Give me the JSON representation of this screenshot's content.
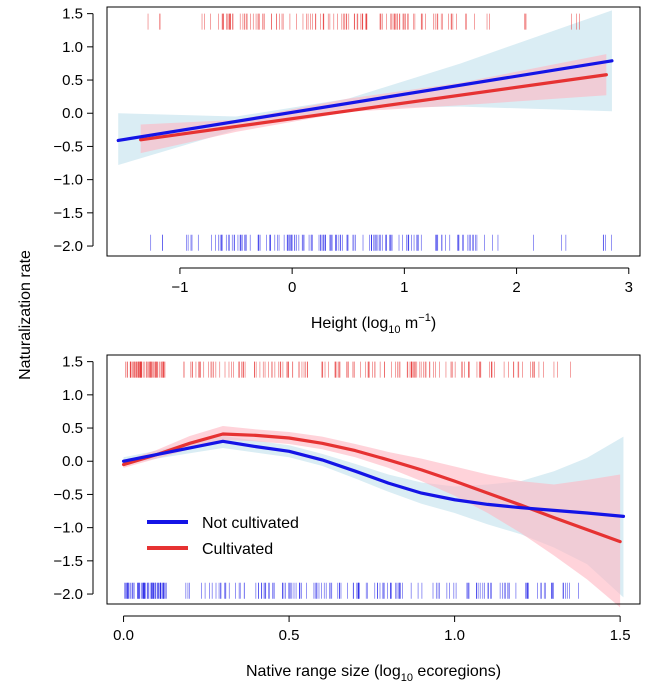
{
  "shared_ylabel": "Naturalization rate",
  "colors": {
    "not_cultivated": "#1414e6",
    "cultivated": "#e63232",
    "not_cultivated_band": "#add8e6",
    "cultivated_band": "#ffb6c1"
  },
  "legend": {
    "placement": "bottom-left of lower panel",
    "entries": [
      {
        "label": "Not cultivated",
        "color": "#1414e6"
      },
      {
        "label": "Cultivated",
        "color": "#e63232"
      }
    ]
  },
  "chart_data": [
    {
      "type": "line",
      "xlabel_prefix": "Height (log",
      "xlabel_sub": "10",
      "xlabel_mid": " m",
      "xlabel_sup": "−1",
      "xlabel_suffix": ")",
      "ylabel": "Naturalization rate",
      "xlim": [
        -1.65,
        3.1
      ],
      "ylim": [
        -2.15,
        1.6
      ],
      "xticks": [
        -1,
        0,
        1,
        2,
        3
      ],
      "xtick_labels": [
        "−1",
        "0",
        "1",
        "2",
        "3"
      ],
      "yticks": [
        1.5,
        1.0,
        0.5,
        0.0,
        -0.5,
        -1.0,
        -1.5,
        -2.0
      ],
      "ytick_labels": [
        "1.5",
        "1.0",
        "0.5",
        "0.0",
        "−0.5",
        "−1.0",
        "−1.5",
        "−2.0"
      ],
      "grid": false,
      "series": [
        {
          "name": "Not cultivated",
          "x": [
            -1.55,
            2.85
          ],
          "y": [
            -0.41,
            0.79
          ],
          "band_x": [
            -1.55,
            -0.5,
            0.5,
            1.5,
            2.85
          ],
          "band_lower": [
            -0.78,
            -0.25,
            0.08,
            0.1,
            0.03
          ],
          "band_upper": [
            0.0,
            -0.05,
            0.22,
            0.75,
            1.55
          ]
        },
        {
          "name": "Cultivated",
          "x": [
            -1.35,
            2.8
          ],
          "y": [
            -0.4,
            0.58
          ],
          "band_x": [
            -1.35,
            -0.5,
            0.5,
            1.5,
            2.8
          ],
          "band_lower": [
            -0.6,
            -0.28,
            0.02,
            0.12,
            0.27
          ],
          "band_upper": [
            -0.17,
            -0.1,
            0.22,
            0.46,
            0.89
          ]
        }
      ],
      "rug": {
        "cultivated_y": 1.38,
        "not_cultivated_y": -1.95,
        "cultivated_ranges": [
          [
            -1.3,
            -1.15,
            3
          ],
          [
            -1.0,
            -0.65,
            4
          ],
          [
            -0.65,
            1.1,
            95
          ],
          [
            1.1,
            1.7,
            18
          ],
          [
            1.7,
            2.7,
            8
          ]
        ],
        "not_cultivated_ranges": [
          [
            -1.4,
            -1.1,
            3
          ],
          [
            -1.0,
            -0.65,
            8
          ],
          [
            -0.65,
            1.25,
            110
          ],
          [
            1.25,
            1.8,
            22
          ],
          [
            1.8,
            2.85,
            8
          ]
        ]
      }
    },
    {
      "type": "line",
      "xlabel_prefix": "Native range size (log",
      "xlabel_sub": "10",
      "xlabel_mid": " ecoregions",
      "xlabel_sup": "",
      "xlabel_suffix": ")",
      "ylabel": "Naturalization rate",
      "xlim": [
        -0.05,
        1.56
      ],
      "ylim": [
        -2.15,
        1.6
      ],
      "xticks": [
        0.0,
        0.5,
        1.0,
        1.5
      ],
      "xtick_labels": [
        "0.0",
        "0.5",
        "1.0",
        "1.5"
      ],
      "yticks": [
        1.5,
        1.0,
        0.5,
        0.0,
        -0.5,
        -1.0,
        -1.5,
        -2.0
      ],
      "ytick_labels": [
        "1.5",
        "1.0",
        "0.5",
        "0.0",
        "−0.5",
        "−1.0",
        "−1.5",
        "−2.0"
      ],
      "grid": false,
      "series": [
        {
          "name": "Not cultivated",
          "x": [
            0.0,
            0.1,
            0.2,
            0.3,
            0.4,
            0.5,
            0.6,
            0.7,
            0.8,
            0.9,
            1.0,
            1.1,
            1.2,
            1.3,
            1.4,
            1.51
          ],
          "y": [
            0.0,
            0.1,
            0.2,
            0.3,
            0.22,
            0.15,
            0.02,
            -0.15,
            -0.33,
            -0.48,
            -0.58,
            -0.65,
            -0.7,
            -0.74,
            -0.78,
            -0.83
          ],
          "band_lower": [
            -0.05,
            0.04,
            0.12,
            0.2,
            0.13,
            0.06,
            -0.07,
            -0.26,
            -0.46,
            -0.64,
            -0.78,
            -0.95,
            -1.1,
            -1.3,
            -1.55,
            -2.05
          ],
          "band_upper": [
            0.06,
            0.16,
            0.28,
            0.38,
            0.31,
            0.24,
            0.11,
            -0.04,
            -0.2,
            -0.32,
            -0.38,
            -0.35,
            -0.3,
            -0.15,
            0.05,
            0.37
          ]
        },
        {
          "name": "Cultivated",
          "x": [
            0.0,
            0.1,
            0.2,
            0.3,
            0.4,
            0.5,
            0.6,
            0.7,
            0.8,
            0.9,
            1.0,
            1.1,
            1.2,
            1.3,
            1.4,
            1.5
          ],
          "y": [
            -0.05,
            0.1,
            0.27,
            0.41,
            0.39,
            0.35,
            0.27,
            0.16,
            0.02,
            -0.13,
            -0.3,
            -0.48,
            -0.66,
            -0.85,
            -1.03,
            -1.21
          ],
          "band_lower": [
            -0.1,
            0.04,
            0.18,
            0.32,
            0.3,
            0.26,
            0.18,
            0.06,
            -0.1,
            -0.3,
            -0.52,
            -0.78,
            -1.08,
            -1.42,
            -1.78,
            -2.2
          ],
          "band_upper": [
            0.0,
            0.17,
            0.38,
            0.53,
            0.48,
            0.44,
            0.37,
            0.26,
            0.14,
            0.04,
            -0.08,
            -0.2,
            -0.3,
            -0.35,
            -0.28,
            -0.2
          ]
        }
      ],
      "rug": {
        "cultivated_y": 1.38,
        "not_cultivated_y": -1.95,
        "cultivated_ranges": [
          [
            0.0,
            0.13,
            60
          ],
          [
            0.18,
            1.0,
            120
          ],
          [
            1.0,
            1.26,
            30
          ],
          [
            1.26,
            1.35,
            4
          ]
        ],
        "not_cultivated_ranges": [
          [
            0.0,
            0.13,
            60
          ],
          [
            0.18,
            1.15,
            120
          ],
          [
            1.15,
            1.3,
            20
          ],
          [
            1.3,
            1.42,
            6
          ]
        ]
      }
    }
  ]
}
